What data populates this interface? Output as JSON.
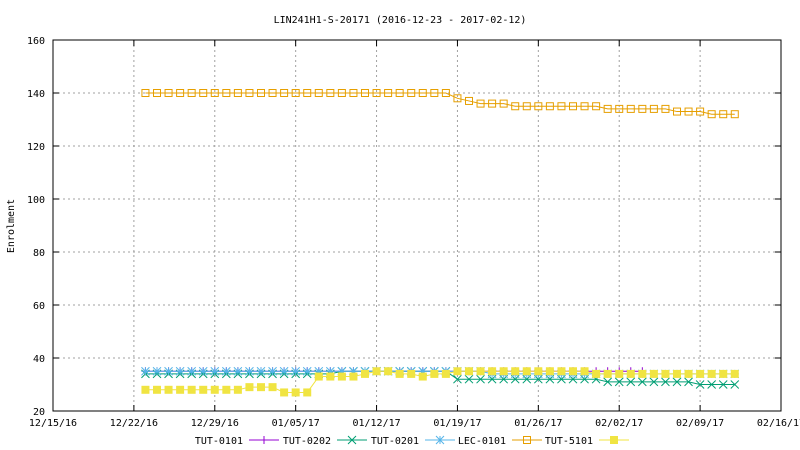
{
  "chart_data": {
    "type": "line",
    "title": "LIN241H1-S-20171 (2016-12-23 - 2017-02-12)",
    "xlabel": "",
    "ylabel": "Enrolment",
    "x_ticks": [
      "12/15/16",
      "12/22/16",
      "12/29/16",
      "01/05/17",
      "01/12/17",
      "01/19/17",
      "01/26/17",
      "02/02/17",
      "02/09/17",
      "02/16/17"
    ],
    "ylim": [
      20,
      160
    ],
    "y_ticks": [
      20,
      40,
      60,
      80,
      100,
      120,
      140,
      160
    ],
    "grid": true,
    "legend_position": "bottom",
    "legend_labels": [
      "TUT-0101",
      "TUT-0202",
      "TUT-0201",
      "LEC-0101",
      "TUT-5101"
    ],
    "series": [
      {
        "name": "TUT-0101",
        "color": "#9400d3",
        "marker": "plus",
        "x": [
          "2016-12-23",
          "2016-12-24",
          "2016-12-25",
          "2016-12-26",
          "2016-12-27",
          "2016-12-28",
          "2016-12-29",
          "2016-12-30",
          "2016-12-31",
          "2017-01-01",
          "2017-01-02",
          "2017-01-03",
          "2017-01-04",
          "2017-01-05",
          "2017-01-06",
          "2017-01-07",
          "2017-01-08",
          "2017-01-09",
          "2017-01-10",
          "2017-01-11",
          "2017-01-12",
          "2017-01-13",
          "2017-01-14",
          "2017-01-15",
          "2017-01-16",
          "2017-01-17",
          "2017-01-18",
          "2017-01-19",
          "2017-01-20",
          "2017-01-21",
          "2017-01-22",
          "2017-01-23",
          "2017-01-24",
          "2017-01-25",
          "2017-01-26",
          "2017-01-27",
          "2017-01-28",
          "2017-01-29",
          "2017-01-30",
          "2017-01-31",
          "2017-02-01",
          "2017-02-02",
          "2017-02-03",
          "2017-02-04"
        ],
        "values": [
          35,
          35,
          35,
          35,
          35,
          35,
          35,
          35,
          35,
          35,
          35,
          35,
          35,
          35,
          35,
          35,
          35,
          35,
          35,
          35,
          35,
          35,
          35,
          35,
          35,
          35,
          35,
          35,
          35,
          35,
          35,
          35,
          35,
          35,
          35,
          35,
          35,
          35,
          35,
          35,
          35,
          35,
          35,
          35
        ]
      },
      {
        "name": "TUT-0202",
        "color": "#009e73",
        "marker": "x",
        "x": [
          "2016-12-23",
          "2016-12-24",
          "2016-12-25",
          "2016-12-26",
          "2016-12-27",
          "2016-12-28",
          "2016-12-29",
          "2016-12-30",
          "2016-12-31",
          "2017-01-01",
          "2017-01-02",
          "2017-01-03",
          "2017-01-04",
          "2017-01-05",
          "2017-01-06",
          "2017-01-07",
          "2017-01-08",
          "2017-01-09",
          "2017-01-10",
          "2017-01-11",
          "2017-01-12",
          "2017-01-13",
          "2017-01-14",
          "2017-01-15",
          "2017-01-16",
          "2017-01-17",
          "2017-01-18",
          "2017-01-19",
          "2017-01-20",
          "2017-01-21",
          "2017-01-22",
          "2017-01-23",
          "2017-01-24",
          "2017-01-25",
          "2017-01-26",
          "2017-01-27",
          "2017-01-28",
          "2017-01-29",
          "2017-01-30",
          "2017-01-31",
          "2017-02-01",
          "2017-02-02",
          "2017-02-03",
          "2017-02-04",
          "2017-02-05",
          "2017-02-06",
          "2017-02-07",
          "2017-02-08",
          "2017-02-09",
          "2017-02-10",
          "2017-02-11",
          "2017-02-12"
        ],
        "values": [
          34,
          34,
          34,
          34,
          34,
          34,
          34,
          34,
          34,
          34,
          34,
          34,
          34,
          34,
          34,
          34,
          34,
          35,
          35,
          35,
          35,
          35,
          35,
          35,
          35,
          35,
          35,
          32,
          32,
          32,
          32,
          32,
          32,
          32,
          32,
          32,
          32,
          32,
          32,
          32,
          31,
          31,
          31,
          31,
          31,
          31,
          31,
          31,
          30,
          30,
          30,
          30
        ]
      },
      {
        "name": "TUT-0201",
        "color": "#56b4e9",
        "marker": "star",
        "x": [
          "2016-12-23",
          "2016-12-24",
          "2016-12-25",
          "2016-12-26",
          "2016-12-27",
          "2016-12-28",
          "2016-12-29",
          "2016-12-30",
          "2016-12-31",
          "2017-01-01",
          "2017-01-02",
          "2017-01-03",
          "2017-01-04",
          "2017-01-05",
          "2017-01-06",
          "2017-01-07",
          "2017-01-08",
          "2017-01-09",
          "2017-01-10",
          "2017-01-11",
          "2017-01-12",
          "2017-01-13",
          "2017-01-14",
          "2017-01-15",
          "2017-01-16",
          "2017-01-17",
          "2017-01-18",
          "2017-01-19",
          "2017-01-20",
          "2017-01-21",
          "2017-01-22",
          "2017-01-23",
          "2017-01-24",
          "2017-01-25",
          "2017-01-26",
          "2017-01-27",
          "2017-01-28",
          "2017-01-29",
          "2017-01-30",
          "2017-01-31",
          "2017-02-01",
          "2017-02-02",
          "2017-02-03",
          "2017-02-04",
          "2017-02-05",
          "2017-02-06",
          "2017-02-07",
          "2017-02-08",
          "2017-02-09",
          "2017-02-10",
          "2017-02-11",
          "2017-02-12"
        ],
        "values": [
          35,
          35,
          35,
          35,
          35,
          35,
          35,
          35,
          35,
          35,
          35,
          35,
          35,
          35,
          35,
          35,
          35,
          35,
          35,
          35,
          35,
          35,
          35,
          35,
          35,
          35,
          35,
          35,
          35,
          35,
          34,
          34,
          34,
          34,
          34,
          34,
          34,
          34,
          34,
          34,
          34,
          34,
          34,
          34,
          34,
          34,
          34,
          34,
          34,
          34,
          34,
          34
        ]
      },
      {
        "name": "LEC-0101",
        "color": "#e69f00",
        "marker": "open-square",
        "x": [
          "2016-12-23",
          "2016-12-24",
          "2016-12-25",
          "2016-12-26",
          "2016-12-27",
          "2016-12-28",
          "2016-12-29",
          "2016-12-30",
          "2016-12-31",
          "2017-01-01",
          "2017-01-02",
          "2017-01-03",
          "2017-01-04",
          "2017-01-05",
          "2017-01-06",
          "2017-01-07",
          "2017-01-08",
          "2017-01-09",
          "2017-01-10",
          "2017-01-11",
          "2017-01-12",
          "2017-01-13",
          "2017-01-14",
          "2017-01-15",
          "2017-01-16",
          "2017-01-17",
          "2017-01-18",
          "2017-01-19",
          "2017-01-20",
          "2017-01-21",
          "2017-01-22",
          "2017-01-23",
          "2017-01-24",
          "2017-01-25",
          "2017-01-26",
          "2017-01-27",
          "2017-01-28",
          "2017-01-29",
          "2017-01-30",
          "2017-01-31",
          "2017-02-01",
          "2017-02-02",
          "2017-02-03",
          "2017-02-04",
          "2017-02-05",
          "2017-02-06",
          "2017-02-07",
          "2017-02-08",
          "2017-02-09",
          "2017-02-10",
          "2017-02-11",
          "2017-02-12"
        ],
        "values": [
          140,
          140,
          140,
          140,
          140,
          140,
          140,
          140,
          140,
          140,
          140,
          140,
          140,
          140,
          140,
          140,
          140,
          140,
          140,
          140,
          140,
          140,
          140,
          140,
          140,
          140,
          140,
          138,
          137,
          136,
          136,
          136,
          135,
          135,
          135,
          135,
          135,
          135,
          135,
          135,
          134,
          134,
          134,
          134,
          134,
          134,
          133,
          133,
          133,
          132,
          132,
          132
        ]
      },
      {
        "name": "TUT-5101",
        "color": "#f0e442",
        "marker": "filled-square",
        "x": [
          "2016-12-23",
          "2016-12-24",
          "2016-12-25",
          "2016-12-26",
          "2016-12-27",
          "2016-12-28",
          "2016-12-29",
          "2016-12-30",
          "2016-12-31",
          "2017-01-01",
          "2017-01-02",
          "2017-01-03",
          "2017-01-04",
          "2017-01-05",
          "2017-01-06",
          "2017-01-07",
          "2017-01-08",
          "2017-01-09",
          "2017-01-10",
          "2017-01-11",
          "2017-01-12",
          "2017-01-13",
          "2017-01-14",
          "2017-01-15",
          "2017-01-16",
          "2017-01-17",
          "2017-01-18",
          "2017-01-19",
          "2017-01-20",
          "2017-01-21",
          "2017-01-22",
          "2017-01-23",
          "2017-01-24",
          "2017-01-25",
          "2017-01-26",
          "2017-01-27",
          "2017-01-28",
          "2017-01-29",
          "2017-01-30",
          "2017-01-31",
          "2017-02-01",
          "2017-02-02",
          "2017-02-03",
          "2017-02-04",
          "2017-02-05",
          "2017-02-06",
          "2017-02-07",
          "2017-02-08",
          "2017-02-09",
          "2017-02-10",
          "2017-02-11",
          "2017-02-12"
        ],
        "values": [
          28,
          28,
          28,
          28,
          28,
          28,
          28,
          28,
          28,
          29,
          29,
          29,
          27,
          27,
          27,
          33,
          33,
          33,
          33,
          34,
          35,
          35,
          34,
          34,
          33,
          34,
          34,
          35,
          35,
          35,
          35,
          35,
          35,
          35,
          35,
          35,
          35,
          35,
          35,
          34,
          34,
          34,
          34,
          34,
          34,
          34,
          34,
          34,
          34,
          34,
          34,
          34
        ]
      }
    ]
  }
}
